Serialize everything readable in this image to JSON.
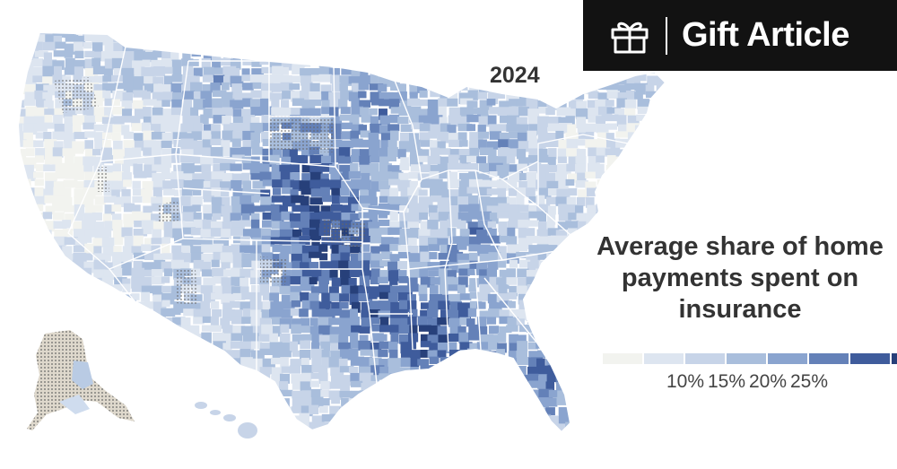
{
  "header": {
    "gift_button_label": "Gift Article",
    "gift_icon": "gift-icon"
  },
  "map": {
    "year": "2024",
    "region": "United States counties",
    "colors": {
      "background": "#ffffff",
      "banner": "#121212",
      "state_border": "#ffffff",
      "dotted_pattern": "#666666"
    }
  },
  "legend": {
    "title": "Average share of home payments spent on insurance",
    "bins": [
      "#f2f3ef",
      "#dde5f0",
      "#c7d4e8",
      "#a9bedc",
      "#8aa4cf",
      "#6481b8",
      "#3f5c9c",
      "#27407a"
    ],
    "ticks": [
      {
        "label": "10%",
        "value": 10
      },
      {
        "label": "15%",
        "value": 15
      },
      {
        "label": "20%",
        "value": 20
      },
      {
        "label": "25%",
        "value": 25
      }
    ]
  }
}
